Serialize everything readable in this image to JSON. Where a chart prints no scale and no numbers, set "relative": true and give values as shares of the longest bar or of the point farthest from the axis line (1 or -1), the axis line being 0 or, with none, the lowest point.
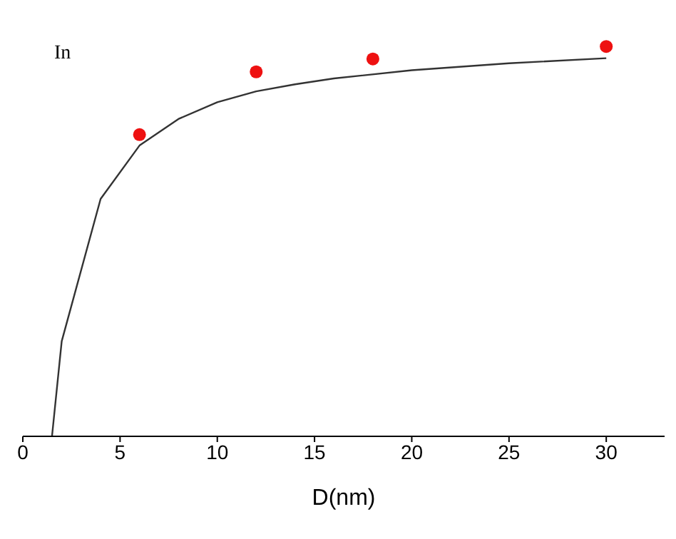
{
  "chart_data": {
    "type": "line",
    "xlabel": "D(nm)",
    "relative": true,
    "xlim": [
      0,
      33
    ],
    "xticks": [
      0,
      5,
      10,
      15,
      20,
      25,
      30
    ],
    "tick_labels": "x",
    "grid": false,
    "annotations": [
      "In"
    ],
    "series": [
      {
        "color": "#333333",
        "marker": "none",
        "line_style": "solid",
        "x": [
          1.5,
          2,
          4,
          6,
          8,
          10,
          12,
          14,
          16,
          20,
          25,
          30
        ],
        "values": [
          0,
          0.244,
          0.609,
          0.746,
          0.814,
          0.857,
          0.885,
          0.903,
          0.918,
          0.939,
          0.957,
          0.97
        ]
      },
      {
        "type": "scatter",
        "color": "#ee1111",
        "marker": "circle",
        "x": [
          6,
          12,
          18,
          30
        ],
        "values": [
          0.774,
          0.935,
          0.968,
          1.0
        ]
      }
    ]
  }
}
